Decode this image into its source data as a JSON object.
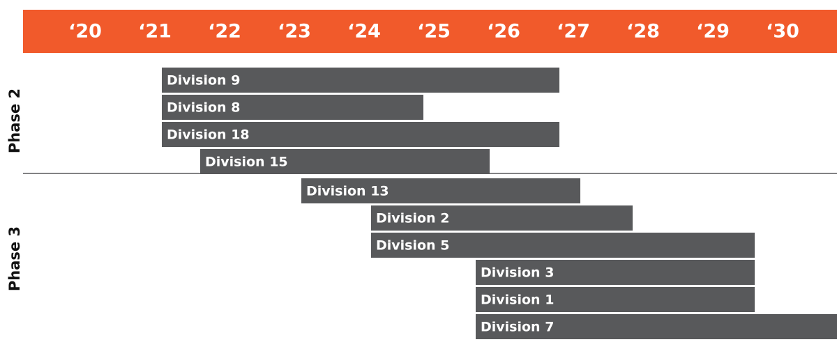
{
  "chart_data": {
    "type": "gantt",
    "xlim": [
      2019.11,
      2030.78
    ],
    "xticks": [
      {
        "value": 2020,
        "label": "‘20"
      },
      {
        "value": 2021,
        "label": "‘21"
      },
      {
        "value": 2022,
        "label": "‘22"
      },
      {
        "value": 2023,
        "label": "‘23"
      },
      {
        "value": 2024,
        "label": "‘24"
      },
      {
        "value": 2025,
        "label": "‘25"
      },
      {
        "value": 2026,
        "label": "‘26"
      },
      {
        "value": 2027,
        "label": "‘27"
      },
      {
        "value": 2028,
        "label": "‘28"
      },
      {
        "value": 2029,
        "label": "‘29"
      },
      {
        "value": 2030,
        "label": "‘30"
      }
    ],
    "header_color": "#f15a2b",
    "color": "#58595b",
    "groups": [
      {
        "name": "Phase 2",
        "bars": [
          {
            "name": "Division 9",
            "start": 2021.1,
            "end": 2026.8
          },
          {
            "name": "Division 8",
            "start": 2021.1,
            "end": 2024.85
          },
          {
            "name": "Division 18",
            "start": 2021.1,
            "end": 2026.8
          },
          {
            "name": "Division 15",
            "start": 2021.65,
            "end": 2025.8
          }
        ]
      },
      {
        "name": "Phase 3",
        "bars": [
          {
            "name": "Division 13",
            "start": 2023.1,
            "end": 2027.1
          },
          {
            "name": "Division 2",
            "start": 2024.1,
            "end": 2027.85
          },
          {
            "name": "Division 5",
            "start": 2024.1,
            "end": 2029.6
          },
          {
            "name": "Division 3",
            "start": 2025.6,
            "end": 2029.6
          },
          {
            "name": "Division 1",
            "start": 2025.6,
            "end": 2029.6
          },
          {
            "name": "Division 7",
            "start": 2025.6,
            "end": 2030.78
          }
        ]
      }
    ]
  }
}
